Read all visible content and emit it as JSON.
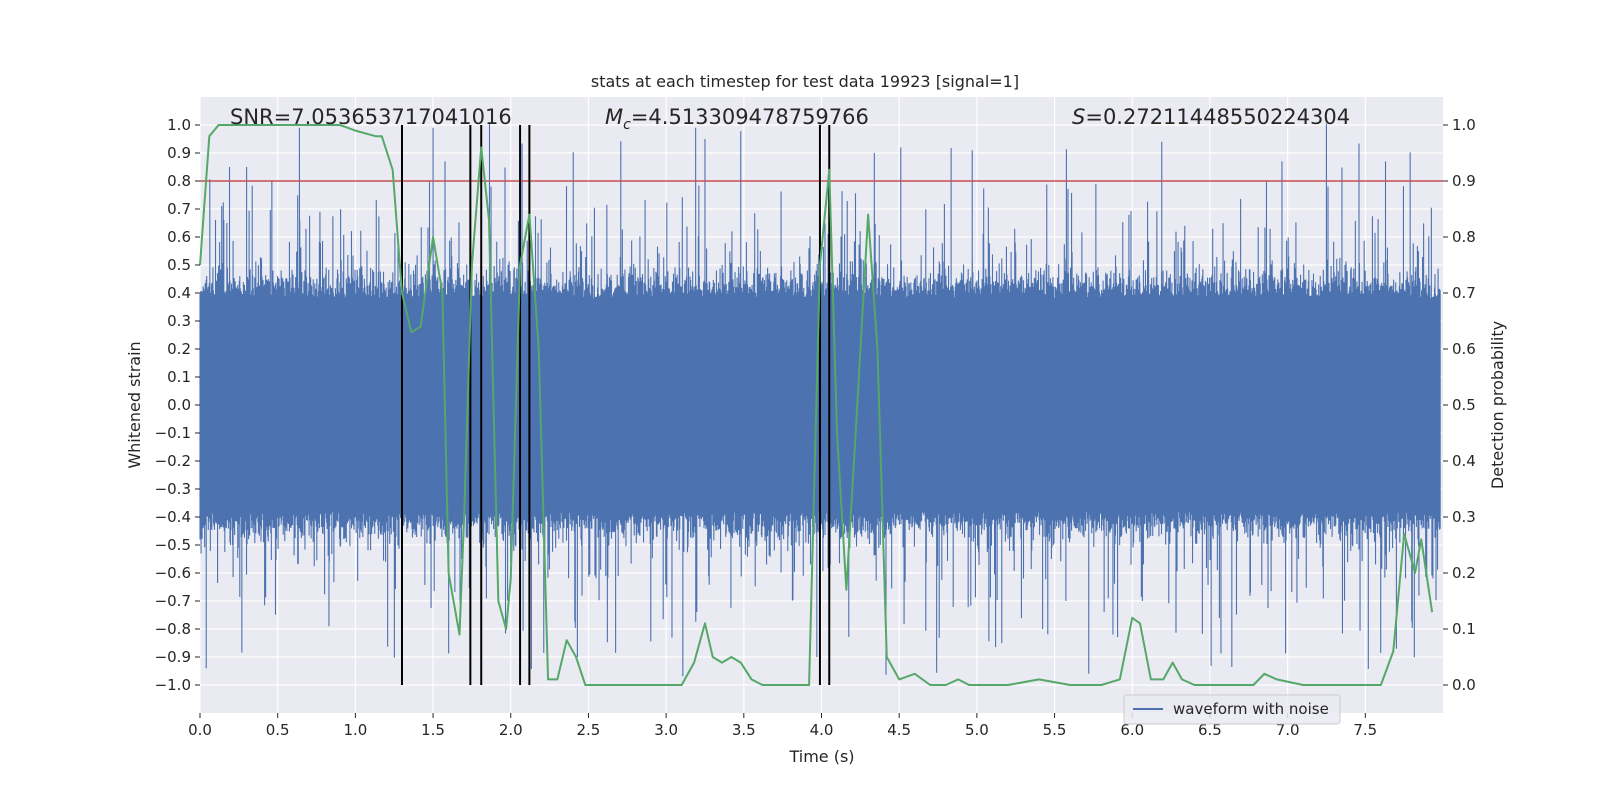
{
  "chart_data": {
    "type": "line",
    "title": "stats at each timestep for test data 19923 [signal=1]",
    "xlabel": "Time (s)",
    "ylabel": "Whitened strain",
    "y2label": "Detection probability",
    "xlim": [
      0.0,
      8.0
    ],
    "ylim": [
      -1.1,
      1.1
    ],
    "y2lim": [
      -0.05,
      1.05
    ],
    "x_ticks": [
      "0.0",
      "0.5",
      "1.0",
      "1.5",
      "2.0",
      "2.5",
      "3.0",
      "3.5",
      "4.0",
      "4.5",
      "5.0",
      "5.5",
      "6.0",
      "6.5",
      "7.0",
      "7.5"
    ],
    "y_ticks": [
      "1.0",
      "0.9",
      "0.8",
      "0.7",
      "0.6",
      "0.5",
      "0.4",
      "0.3",
      "0.2",
      "0.1",
      "0.0",
      "-0.1",
      "-0.2",
      "-0.3",
      "-0.4",
      "-0.5",
      "-0.6",
      "-0.7",
      "-0.8",
      "-0.9",
      "-1.0"
    ],
    "y2_ticks": [
      "1.0",
      "0.9",
      "0.8",
      "0.7",
      "0.6",
      "0.5",
      "0.4",
      "0.3",
      "0.2",
      "0.1",
      "0.0"
    ],
    "grid": true,
    "legend": {
      "position": "bottom-right",
      "entries": [
        "waveform with noise"
      ]
    },
    "annotations": {
      "snr": "SNR=7.053653717041016",
      "mc_symbol": "M",
      "mc_sub": "c",
      "mc_value": "=4.513309478759766",
      "s_symbol": "S",
      "s_value": "=0.27211448550224304"
    },
    "threshold": {
      "value": 0.9,
      "axis": "y2",
      "color": "#c44e52"
    },
    "vertical_lines": [
      1.3,
      1.74,
      1.81,
      2.06,
      2.12,
      3.99,
      4.05
    ],
    "waveform": {
      "name": "waveform with noise",
      "color": "#4c72b0",
      "envelope_typical": 0.38,
      "peak_range": [
        -0.95,
        0.99
      ],
      "spikes": [
        {
          "t": 0.04,
          "v": -0.94
        },
        {
          "t": 0.19,
          "v": 0.85
        },
        {
          "t": 0.3,
          "v": 0.85
        },
        {
          "t": 0.64,
          "v": 0.99
        },
        {
          "t": 0.83,
          "v": -0.79
        },
        {
          "t": 1.3,
          "v": -0.91
        },
        {
          "t": 1.5,
          "v": 0.99
        },
        {
          "t": 3.19,
          "v": 0.99
        },
        {
          "t": 3.25,
          "v": 0.95
        },
        {
          "t": 3.97,
          "v": -0.9
        },
        {
          "t": 4.34,
          "v": 0.9
        },
        {
          "t": 4.51,
          "v": 0.92
        },
        {
          "t": 4.97,
          "v": 0.91
        },
        {
          "t": 5.72,
          "v": -0.96
        },
        {
          "t": 6.19,
          "v": 0.94
        },
        {
          "t": 7.63,
          "v": 0.87
        },
        {
          "t": 7.7,
          "v": -0.87
        }
      ]
    },
    "detection_probability": {
      "color": "#55a868",
      "x": [
        0.0,
        0.06,
        0.12,
        0.5,
        0.9,
        1.0,
        1.13,
        1.17,
        1.24,
        1.3,
        1.36,
        1.42,
        1.5,
        1.56,
        1.6,
        1.67,
        1.7,
        1.75,
        1.81,
        1.86,
        1.92,
        1.97,
        2.0,
        2.06,
        2.12,
        2.18,
        2.24,
        2.3,
        2.36,
        2.42,
        2.48,
        2.55,
        2.7,
        2.8,
        3.0,
        3.1,
        3.18,
        3.25,
        3.3,
        3.36,
        3.42,
        3.48,
        3.55,
        3.62,
        3.8,
        3.92,
        3.99,
        4.05,
        4.1,
        4.16,
        4.22,
        4.3,
        4.36,
        4.42,
        4.5,
        4.6,
        4.65,
        4.7,
        4.8,
        4.88,
        4.95,
        5.2,
        5.4,
        5.6,
        5.8,
        5.92,
        6.0,
        6.05,
        6.12,
        6.2,
        6.26,
        6.32,
        6.4,
        6.6,
        6.72,
        6.78,
        6.85,
        6.93,
        7.1,
        7.3,
        7.6,
        7.68,
        7.75,
        7.82,
        7.86,
        7.93
      ],
      "y": [
        0.75,
        0.98,
        1.0,
        1.0,
        1.0,
        0.99,
        0.98,
        0.98,
        0.92,
        0.7,
        0.63,
        0.64,
        0.8,
        0.7,
        0.2,
        0.09,
        0.3,
        0.75,
        0.96,
        0.83,
        0.15,
        0.1,
        0.19,
        0.75,
        0.84,
        0.6,
        0.01,
        0.01,
        0.08,
        0.05,
        0.0,
        0.0,
        0.0,
        0.0,
        0.0,
        0.0,
        0.04,
        0.11,
        0.05,
        0.04,
        0.05,
        0.04,
        0.01,
        0.0,
        0.0,
        0.0,
        0.75,
        0.92,
        0.45,
        0.17,
        0.45,
        0.84,
        0.6,
        0.05,
        0.01,
        0.02,
        0.01,
        0.0,
        0.0,
        0.01,
        0.0,
        0.0,
        0.01,
        0.0,
        0.0,
        0.01,
        0.12,
        0.11,
        0.01,
        0.01,
        0.04,
        0.01,
        0.0,
        0.0,
        0.0,
        0.0,
        0.02,
        0.01,
        0.0,
        0.0,
        0.0,
        0.06,
        0.27,
        0.2,
        0.26,
        0.13
      ]
    }
  }
}
